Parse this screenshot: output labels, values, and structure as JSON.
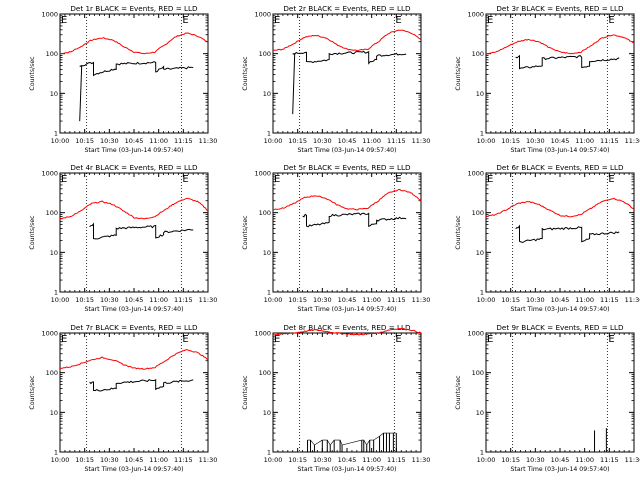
{
  "figure": {
    "xlabel": "Start Time (03-Jun-14 09:57:40)",
    "ylabel": "Counts/sec",
    "marker_label": "E"
  },
  "chart_data": [
    {
      "id": "det1",
      "type": "line",
      "title": "Det 1r BLACK = Events, RED = LLD",
      "x_ticks": [
        "10:00",
        "10:15",
        "10:30",
        "10:45",
        "11:00",
        "11:15",
        "11:30"
      ],
      "x_range": [
        10.0,
        11.5
      ],
      "y_scale": "log",
      "y_range": [
        1,
        1000
      ],
      "y_ticks": [
        "1",
        "10",
        "100",
        "1000"
      ],
      "markers_x": [
        10.27,
        11.23
      ],
      "series": [
        {
          "name": "LLD",
          "color": "#ff0000",
          "kind": "lld",
          "values": [
            100,
            110,
            150,
            220,
            250,
            220,
            150,
            110,
            100,
            110,
            170,
            270,
            330,
            280,
            190
          ]
        },
        {
          "name": "Events",
          "color": "#000000",
          "kind": "events",
          "base": 2,
          "drop": [
            10.2,
            10.22
          ],
          "segments": [
            [
              10.2,
              10.34,
              50,
              60
            ],
            [
              10.34,
              10.57,
              30,
              42
            ],
            [
              10.57,
              10.97,
              55,
              60
            ],
            [
              10.97,
              11.05,
              35,
              45
            ],
            [
              11.05,
              11.35,
              40,
              45
            ]
          ]
        }
      ]
    },
    {
      "id": "det2",
      "type": "line",
      "title": "Det 2r BLACK = Events, RED = LLD",
      "x_ticks": [
        "10:00",
        "10:15",
        "10:30",
        "10:45",
        "11:00",
        "11:15",
        "11:30"
      ],
      "x_range": [
        10.0,
        11.5
      ],
      "y_scale": "log",
      "y_range": [
        1,
        1000
      ],
      "y_ticks": [
        "1",
        "10",
        "100",
        "1000"
      ],
      "markers_x": [
        10.27,
        11.23
      ],
      "series": [
        {
          "name": "LLD",
          "color": "#ff0000",
          "kind": "lld",
          "values": [
            120,
            130,
            180,
            260,
            290,
            250,
            170,
            130,
            120,
            130,
            200,
            330,
            400,
            340,
            220
          ]
        },
        {
          "name": "Events",
          "color": "#000000",
          "kind": "events",
          "base": 3,
          "drop": [
            10.2,
            10.22
          ],
          "segments": [
            [
              10.2,
              10.34,
              100,
              110
            ],
            [
              10.34,
              10.57,
              60,
              70
            ],
            [
              10.57,
              10.97,
              100,
              110
            ],
            [
              10.97,
              11.05,
              60,
              70
            ],
            [
              11.05,
              11.35,
              90,
              100
            ]
          ]
        }
      ]
    },
    {
      "id": "det3",
      "type": "line",
      "title": "Det 3r BLACK = Events, RED = LLD",
      "x_ticks": [
        "10:00",
        "10:15",
        "10:30",
        "10:45",
        "11:00",
        "11:15",
        "11:30"
      ],
      "x_range": [
        10.0,
        11.5
      ],
      "y_scale": "log",
      "y_range": [
        1,
        1000
      ],
      "y_ticks": [
        "1",
        "10",
        "100",
        "1000"
      ],
      "markers_x": [
        10.27,
        11.23
      ],
      "series": [
        {
          "name": "LLD",
          "color": "#ff0000",
          "kind": "lld",
          "values": [
            100,
            110,
            150,
            200,
            230,
            200,
            140,
            110,
            100,
            110,
            160,
            250,
            300,
            260,
            180
          ]
        },
        {
          "name": "Events",
          "color": "#000000",
          "kind": "events",
          "segments": [
            [
              10.3,
              10.34,
              80,
              90
            ],
            [
              10.34,
              10.57,
              42,
              50
            ],
            [
              10.57,
              10.97,
              75,
              85
            ],
            [
              10.97,
              11.05,
              45,
              50
            ],
            [
              11.05,
              11.35,
              65,
              75
            ]
          ]
        }
      ]
    },
    {
      "id": "det4",
      "type": "line",
      "title": "Det 4r BLACK = Events, RED = LLD",
      "x_ticks": [
        "10:00",
        "10:15",
        "10:30",
        "10:45",
        "11:00",
        "11:15",
        "11:30"
      ],
      "x_range": [
        10.0,
        11.5
      ],
      "y_scale": "log",
      "y_range": [
        1,
        1000
      ],
      "y_ticks": [
        "1",
        "10",
        "100",
        "1000"
      ],
      "markers_x": [
        10.27,
        11.23
      ],
      "series": [
        {
          "name": "LLD",
          "color": "#ff0000",
          "kind": "lld",
          "values": [
            70,
            80,
            110,
            170,
            190,
            160,
            110,
            75,
            70,
            80,
            120,
            180,
            230,
            190,
            110
          ]
        },
        {
          "name": "Events",
          "color": "#000000",
          "kind": "events",
          "segments": [
            [
              10.3,
              10.34,
              45,
              50
            ],
            [
              10.34,
              10.57,
              22,
              27
            ],
            [
              10.57,
              10.97,
              40,
              45
            ],
            [
              10.97,
              11.05,
              24,
              28
            ],
            [
              11.05,
              11.35,
              32,
              38
            ]
          ]
        }
      ]
    },
    {
      "id": "det5",
      "type": "line",
      "title": "Det 5r BLACK = Events, RED = LLD",
      "x_ticks": [
        "10:00",
        "10:15",
        "10:30",
        "10:45",
        "11:00",
        "11:15",
        "11:30"
      ],
      "x_range": [
        10.0,
        11.5
      ],
      "y_scale": "log",
      "y_range": [
        1,
        1000
      ],
      "y_ticks": [
        "1",
        "10",
        "100",
        "1000"
      ],
      "markers_x": [
        10.27,
        11.23
      ],
      "series": [
        {
          "name": "LLD",
          "color": "#ff0000",
          "kind": "lld",
          "values": [
            120,
            130,
            170,
            240,
            270,
            230,
            160,
            125,
            120,
            130,
            200,
            320,
            380,
            320,
            200
          ]
        },
        {
          "name": "Events",
          "color": "#000000",
          "kind": "events",
          "segments": [
            [
              10.3,
              10.34,
              80,
              90
            ],
            [
              10.34,
              10.57,
              45,
              55
            ],
            [
              10.57,
              10.97,
              85,
              95
            ],
            [
              10.97,
              11.05,
              45,
              55
            ],
            [
              11.05,
              11.35,
              65,
              75
            ]
          ]
        }
      ]
    },
    {
      "id": "det6",
      "type": "line",
      "title": "Det 6r BLACK = Events, RED = LLD",
      "x_ticks": [
        "10:00",
        "10:15",
        "10:30",
        "10:45",
        "11:00",
        "11:15",
        "11:30"
      ],
      "x_range": [
        10.0,
        11.5
      ],
      "y_scale": "log",
      "y_range": [
        1,
        1000
      ],
      "y_ticks": [
        "1",
        "10",
        "100",
        "1000"
      ],
      "markers_x": [
        10.27,
        11.23
      ],
      "series": [
        {
          "name": "LLD",
          "color": "#ff0000",
          "kind": "lld",
          "values": [
            80,
            90,
            120,
            170,
            190,
            160,
            115,
            85,
            80,
            90,
            130,
            190,
            230,
            190,
            120
          ]
        },
        {
          "name": "Events",
          "color": "#000000",
          "kind": "events",
          "segments": [
            [
              10.3,
              10.34,
              40,
              45
            ],
            [
              10.34,
              10.57,
              18,
              22
            ],
            [
              10.57,
              10.97,
              38,
              42
            ],
            [
              10.97,
              11.05,
              18,
              22
            ],
            [
              11.05,
              11.35,
              28,
              32
            ]
          ]
        }
      ]
    },
    {
      "id": "det7",
      "type": "line",
      "title": "Det 7r BLACK = Events, RED = LLD",
      "x_ticks": [
        "10:00",
        "10:15",
        "10:30",
        "10:45",
        "11:00",
        "11:15",
        "11:30"
      ],
      "x_range": [
        10.0,
        11.5
      ],
      "y_scale": "log",
      "y_range": [
        1,
        1000
      ],
      "y_ticks": [
        "1",
        "10",
        "100",
        "1000"
      ],
      "markers_x": [
        10.27,
        11.23
      ],
      "series": [
        {
          "name": "LLD",
          "color": "#ff0000",
          "kind": "lld",
          "values": [
            130,
            140,
            170,
            210,
            240,
            210,
            160,
            130,
            125,
            135,
            200,
            300,
            380,
            320,
            210
          ]
        },
        {
          "name": "Events",
          "color": "#000000",
          "kind": "events",
          "segments": [
            [
              10.3,
              10.34,
              55,
              60
            ],
            [
              10.34,
              10.57,
              35,
              40
            ],
            [
              10.57,
              10.97,
              55,
              65
            ],
            [
              10.97,
              11.05,
              40,
              45
            ],
            [
              11.05,
              11.35,
              55,
              65
            ]
          ]
        }
      ]
    },
    {
      "id": "det8",
      "type": "line",
      "title": "Det 8r BLACK = Events, RED = LLD",
      "x_ticks": [
        "10:00",
        "10:15",
        "10:30",
        "10:45",
        "11:00",
        "11:15",
        "11:30"
      ],
      "x_range": [
        10.0,
        11.5
      ],
      "y_scale": "log",
      "y_range": [
        1,
        1000
      ],
      "y_ticks": [
        "1",
        "10",
        "100",
        "1000"
      ],
      "markers_x": [
        10.27,
        11.23
      ],
      "series": [
        {
          "name": "LLD",
          "color": "#ff0000",
          "kind": "lld",
          "values": [
            900,
            950,
            1000,
            1100,
            1200,
            1100,
            1000,
            950,
            900,
            950,
            1000,
            1200,
            1300,
            1200,
            1000
          ]
        },
        {
          "name": "Events",
          "color": "#000000",
          "kind": "spikes",
          "values": [
            [
              10.35,
              2
            ],
            [
              10.38,
              2
            ],
            [
              10.42,
              1.5
            ],
            [
              10.5,
              2
            ],
            [
              10.55,
              2
            ],
            [
              10.58,
              1.5
            ],
            [
              10.62,
              2
            ],
            [
              10.68,
              2
            ],
            [
              10.7,
              1.5
            ],
            [
              10.9,
              2
            ],
            [
              10.92,
              2
            ],
            [
              10.95,
              1.5
            ],
            [
              10.98,
              2
            ],
            [
              11.02,
              2
            ],
            [
              11.08,
              2.5
            ],
            [
              11.12,
              3
            ],
            [
              11.15,
              3
            ],
            [
              11.18,
              3
            ],
            [
              11.22,
              3
            ],
            [
              11.25,
              3
            ]
          ]
        }
      ]
    },
    {
      "id": "det9",
      "type": "line",
      "title": "Det 9r BLACK = Events, RED = LLD",
      "x_ticks": [
        "10:00",
        "10:15",
        "10:30",
        "10:45",
        "11:00",
        "11:15",
        "11:30"
      ],
      "x_range": [
        10.0,
        11.5
      ],
      "y_scale": "log",
      "y_range": [
        1,
        1000
      ],
      "y_ticks": [
        "1",
        "10",
        "100",
        "1000"
      ],
      "markers_x": [
        10.27,
        11.23
      ],
      "series": [
        {
          "name": "Events",
          "color": "#000000",
          "kind": "spikes",
          "values": [
            [
              11.1,
              3.5
            ],
            [
              11.22,
              4
            ]
          ]
        }
      ]
    }
  ]
}
